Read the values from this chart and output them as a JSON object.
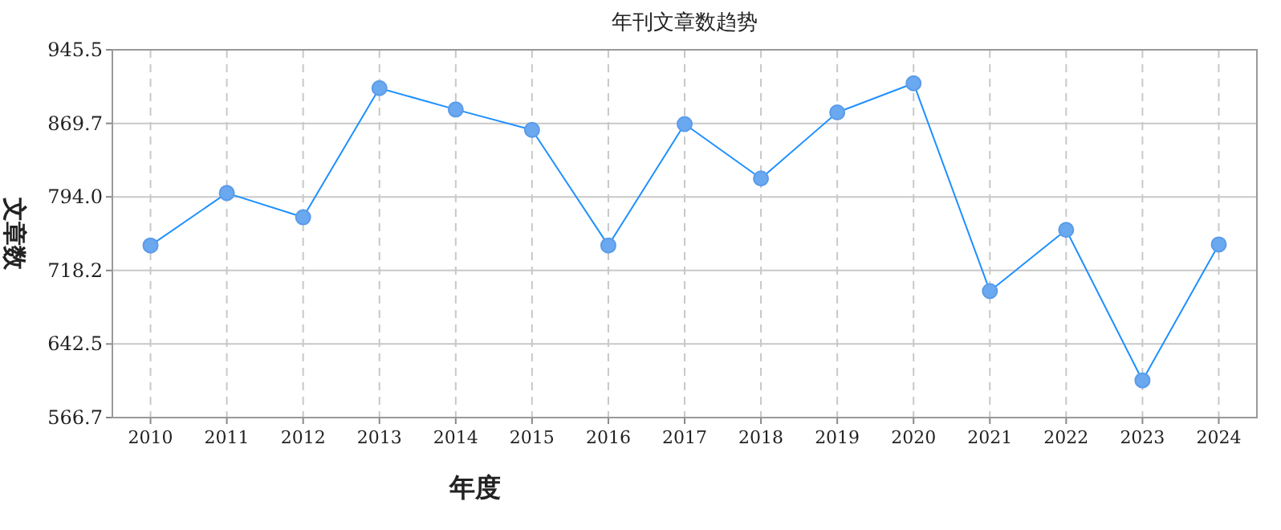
{
  "chart_data": {
    "type": "line",
    "title": "年刊文章数趋势",
    "xlabel": "年度",
    "ylabel": "文章数",
    "categories": [
      "2010",
      "2011",
      "2012",
      "2013",
      "2014",
      "2015",
      "2016",
      "2017",
      "2018",
      "2019",
      "2020",
      "2021",
      "2022",
      "2023",
      "2024"
    ],
    "series": [
      {
        "color": "#1e90ff",
        "values": [
          744,
          798,
          773,
          906,
          884,
          863,
          744,
          869,
          813,
          881,
          911,
          697,
          760,
          605,
          745
        ]
      }
    ],
    "ylim": [
      566.7,
      945.5
    ],
    "yticks": [
      566.7,
      642.5,
      718.2,
      {
        "value": 794,
        "label": "794.0"
      },
      869.7,
      945.5
    ],
    "grid": true,
    "marker": "circle",
    "line_style": "solid"
  }
}
